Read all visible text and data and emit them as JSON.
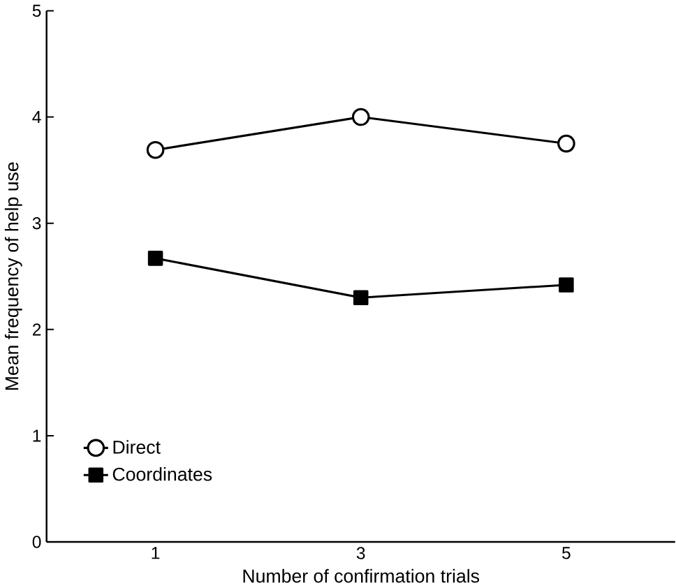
{
  "chart_data": {
    "type": "line",
    "xlabel": "Number of confirmation trials",
    "ylabel": "Mean frequency of help use",
    "categories": [
      "1",
      "3",
      "5"
    ],
    "series": [
      {
        "name": "Direct",
        "color": "#000000",
        "marker": "circle",
        "values": [
          3.69,
          4.0,
          3.75
        ]
      },
      {
        "name": "Coordinates",
        "color": "#000000",
        "marker": "square",
        "values": [
          2.67,
          2.3,
          2.42
        ]
      }
    ],
    "ylim": [
      0,
      5
    ],
    "yticks": [
      0,
      1,
      2,
      3,
      4,
      5
    ],
    "legend": "bottom left",
    "grid": false,
    "line_style": "solid"
  }
}
